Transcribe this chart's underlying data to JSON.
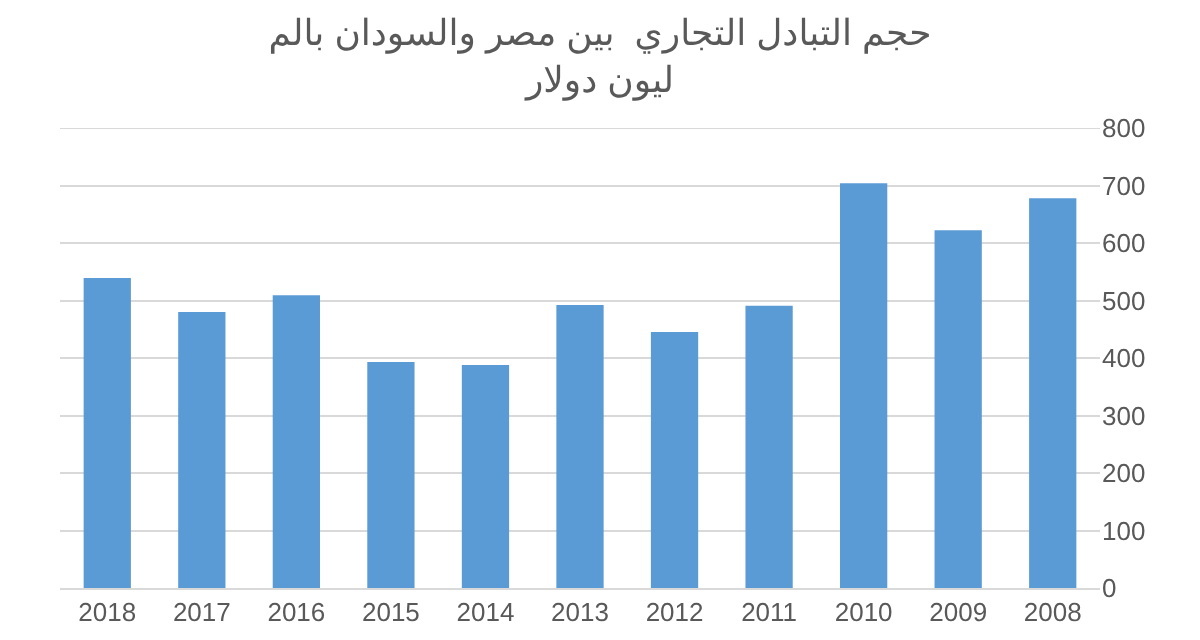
{
  "chart_data": {
    "type": "bar",
    "title": "حجم التبادل التجاري  بين مصر والسودان بالم\nليون دولار",
    "categories": [
      "2018",
      "2017",
      "2016",
      "2015",
      "2014",
      "2013",
      "2012",
      "2011",
      "2010",
      "2009",
      "2008"
    ],
    "values": [
      539,
      480,
      509,
      393,
      388,
      492,
      445,
      491,
      704,
      622,
      678
    ],
    "color": "#5b9bd5",
    "ylim": [
      0,
      800
    ],
    "yticks": [
      0,
      100,
      200,
      300,
      400,
      500,
      600,
      700,
      800
    ],
    "grid": "y",
    "legend": false
  }
}
